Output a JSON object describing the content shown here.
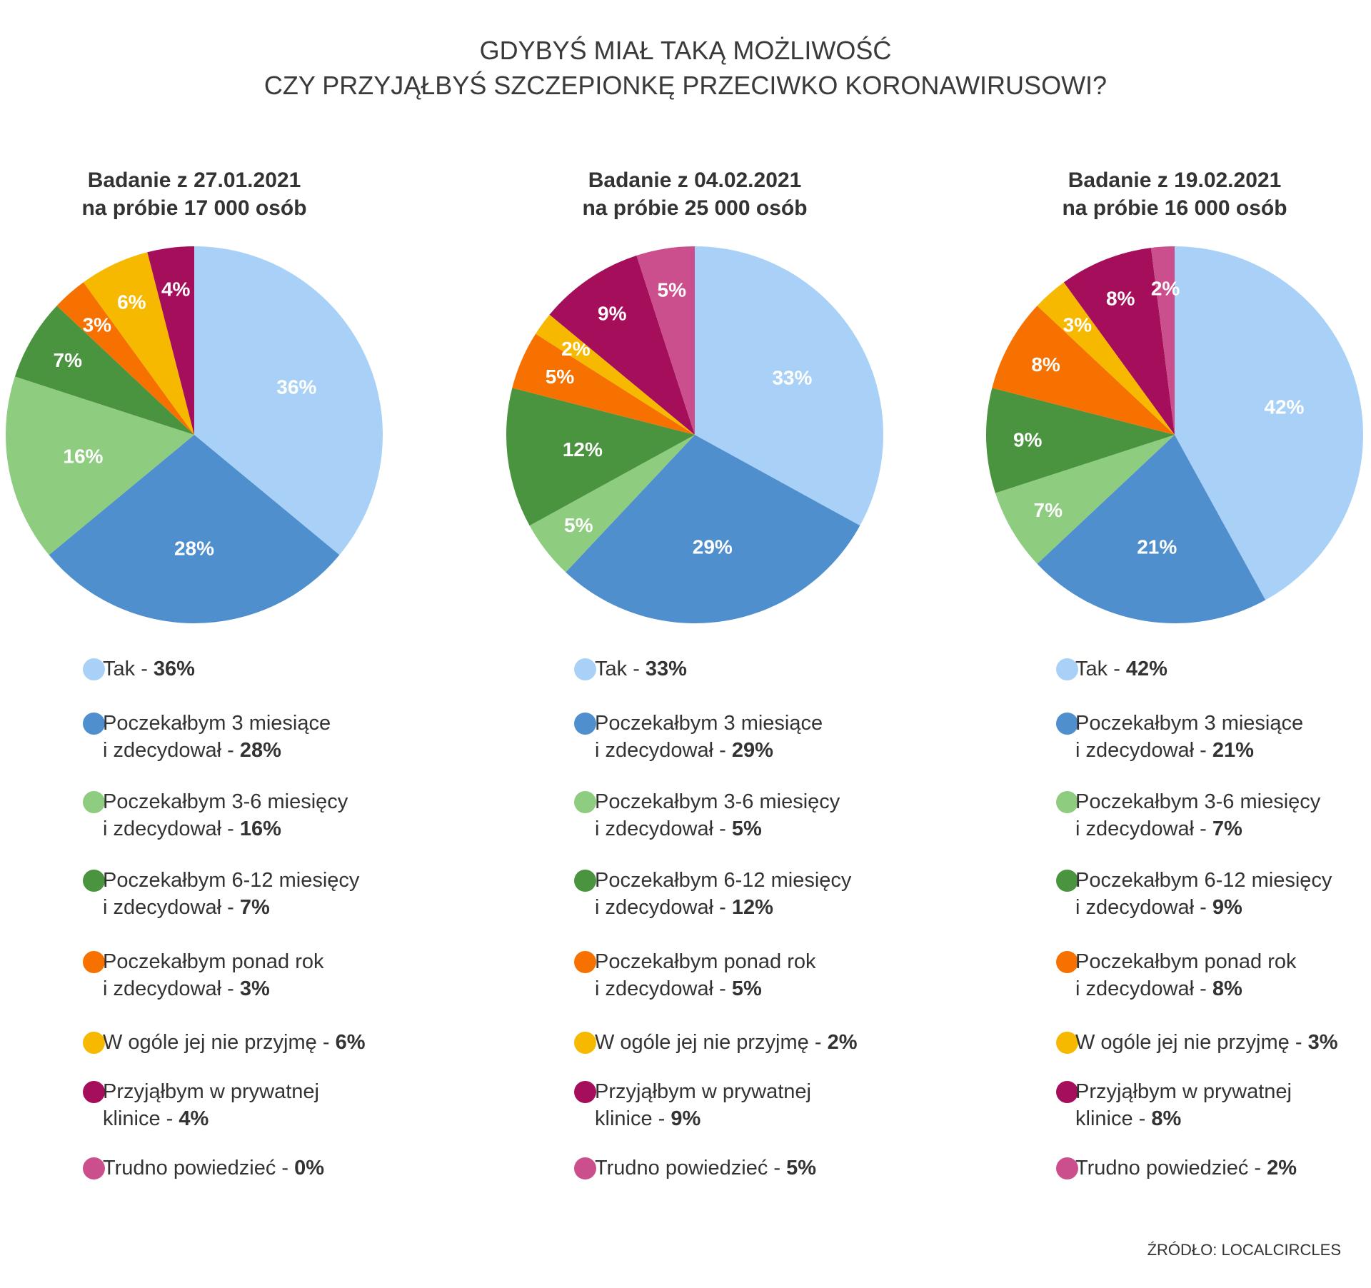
{
  "header": {
    "title_line1": "GDYBYŚ MIAŁ TAKĄ MOŻLIWOŚĆ",
    "title_line2": "CZY PRZYJĄŁBYŚ SZCZEPIONKĘ PRZECIWKO KORONAWIRUSOWI?"
  },
  "source": "ŹRÓDŁO: LOCALCIRCLES",
  "chart_data": {
    "type": "pie",
    "categories": [
      {
        "line1": "Tak",
        "line2": ""
      },
      {
        "line1": "Poczekałbym 3 miesiące",
        "line2": "i zdecydował"
      },
      {
        "line1": "Poczekałbym 3-6 miesięcy",
        "line2": "i zdecydował"
      },
      {
        "line1": "Poczekałbym 6-12 miesięcy",
        "line2": "i zdecydował"
      },
      {
        "line1": "Poczekałbym ponad rok",
        "line2": "i zdecydował"
      },
      {
        "line1": "W ogóle jej nie przyjmę",
        "line2": ""
      },
      {
        "line1": "Przyjąłbym w prywatnej",
        "line2": "klinice"
      },
      {
        "line1": "Trudno powiedzieć",
        "line2": ""
      }
    ],
    "colors": [
      "#a9d1f7",
      "#4f8fcd",
      "#8ecc80",
      "#4a943f",
      "#f77100",
      "#f6b900",
      "#a50e5a",
      "#cc4f8d"
    ],
    "charts": [
      {
        "title_line1": "Badanie z 27.01.2021",
        "title_line2": "na próbie 17 000 osób",
        "values": [
          36,
          28,
          16,
          7,
          3,
          6,
          4,
          0
        ],
        "labels": [
          "36%",
          "28%",
          "16%",
          "7%",
          "3%",
          "6%",
          "4%",
          "0%"
        ]
      },
      {
        "title_line1": "Badanie z 04.02.2021",
        "title_line2": "na próbie 25 000 osób",
        "values": [
          33,
          29,
          5,
          12,
          5,
          2,
          9,
          5
        ],
        "labels": [
          "33%",
          "29%",
          "5%",
          "12%",
          "5%",
          "2%",
          "9%",
          "5%"
        ]
      },
      {
        "title_line1": "Badanie z 19.02.2021",
        "title_line2": "na próbie 16 000 osób",
        "values": [
          42,
          21,
          7,
          9,
          8,
          3,
          8,
          2
        ],
        "labels": [
          "42%",
          "21%",
          "7%",
          "9%",
          "8%",
          "3%",
          "8%",
          "2%"
        ]
      }
    ]
  }
}
